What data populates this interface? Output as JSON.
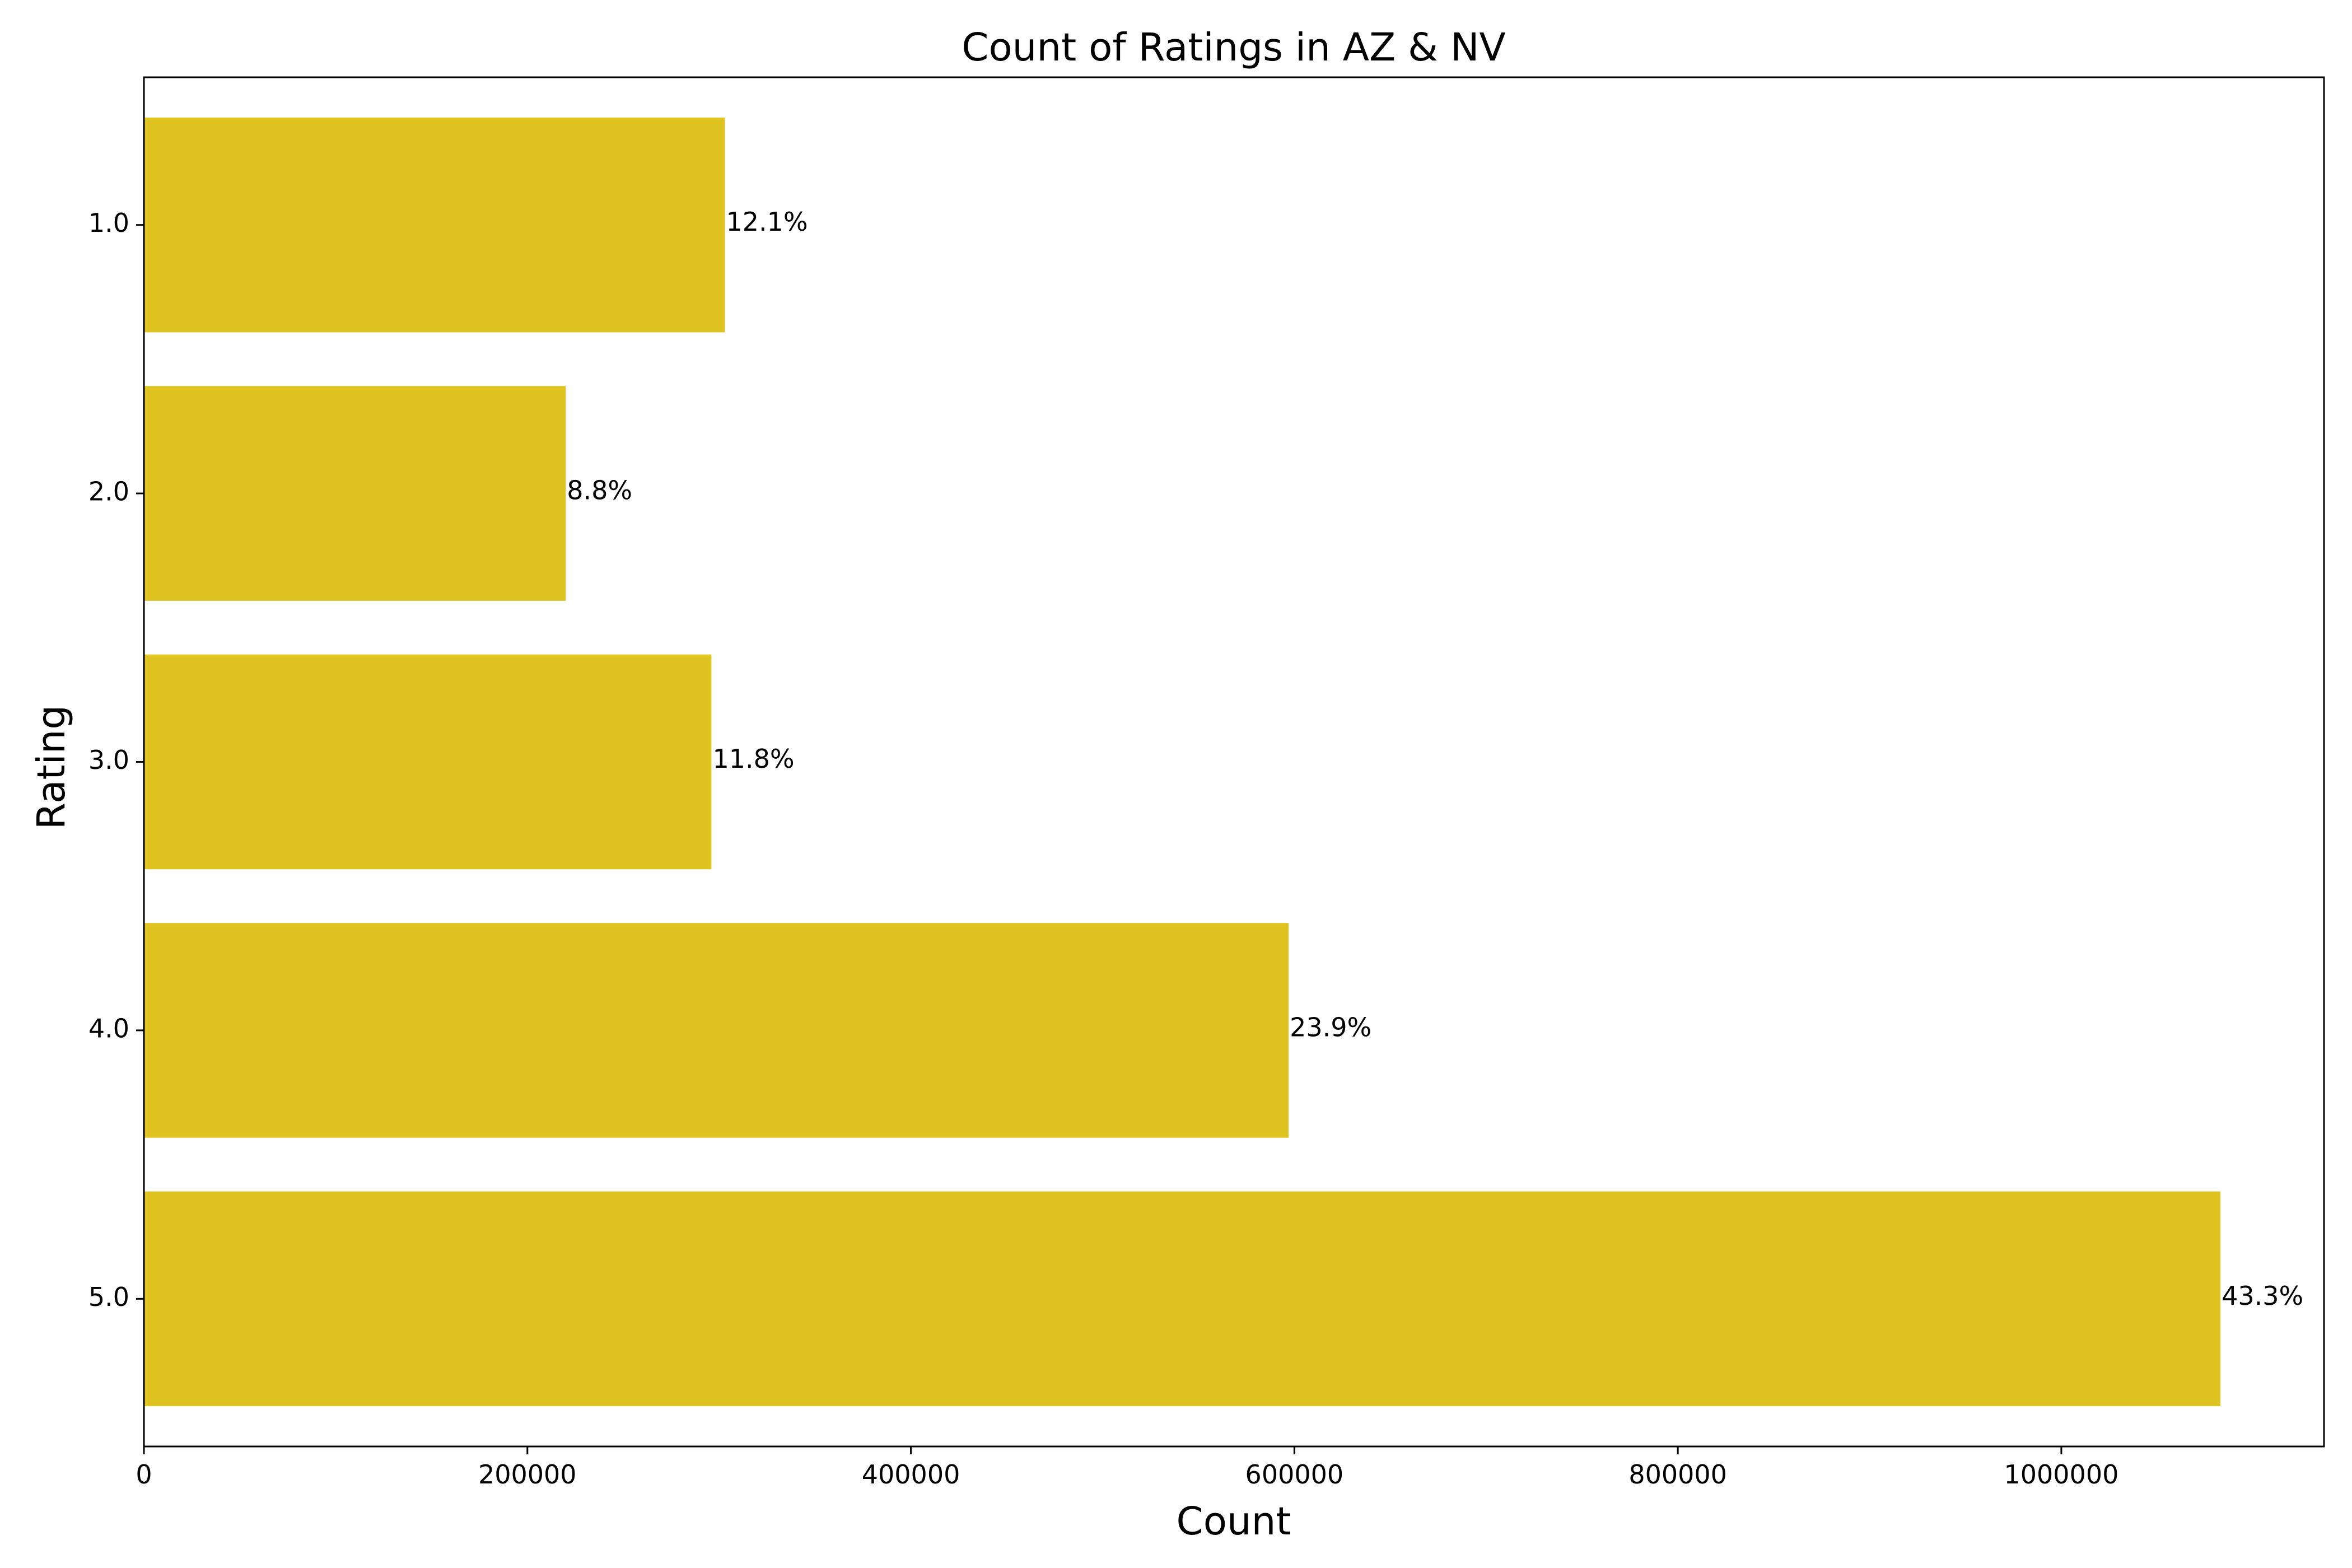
{
  "chart_data": {
    "type": "bar",
    "orientation": "horizontal",
    "title": "Count of Ratings in AZ & NV",
    "xlabel": "Count",
    "ylabel": "Rating",
    "categories": [
      "1.0",
      "2.0",
      "3.0",
      "4.0",
      "5.0"
    ],
    "values": [
      303000,
      220000,
      296000,
      597000,
      1083000
    ],
    "data_labels": [
      "12.1%",
      "8.8%",
      "11.8%",
      "23.9%",
      "43.3%"
    ],
    "xlim": [
      0,
      1137000
    ],
    "xticks": [
      0,
      200000,
      400000,
      600000,
      800000,
      1000000
    ],
    "xtick_labels": [
      "0",
      "200000",
      "400000",
      "600000",
      "800000",
      "1000000"
    ],
    "bar_color": "#dfc320",
    "grid": false,
    "legend": "none"
  }
}
